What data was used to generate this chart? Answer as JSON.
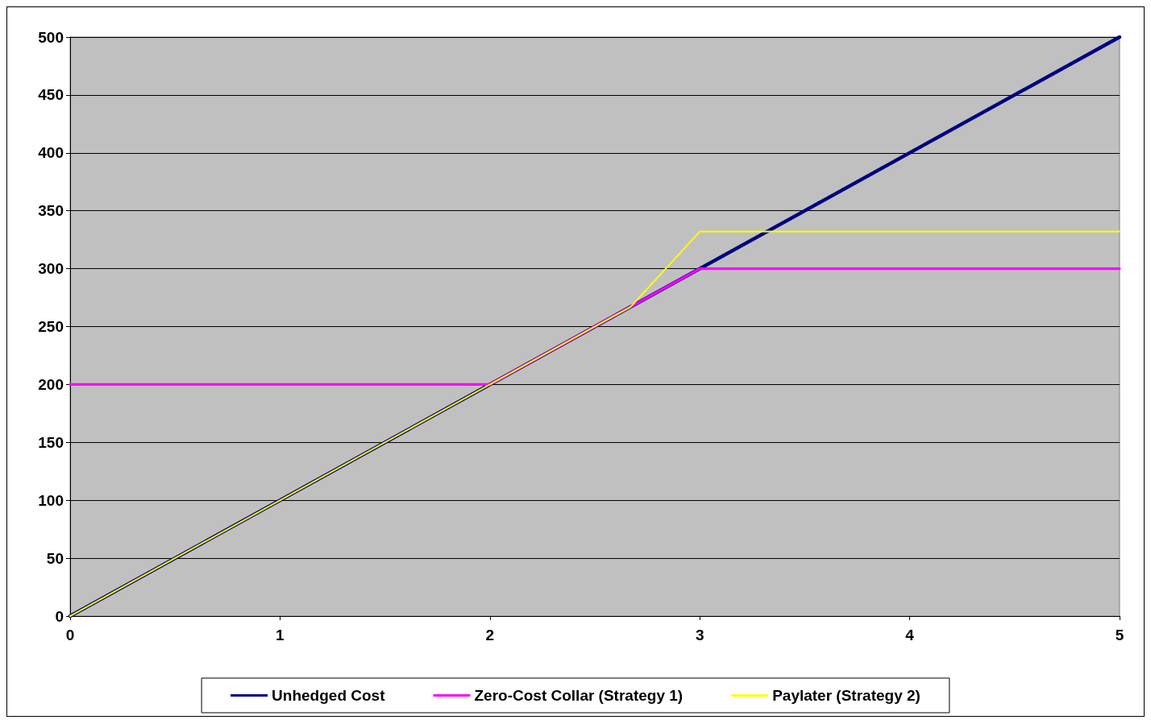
{
  "chart_data": {
    "type": "line",
    "series": [
      {
        "name": "Unhedged Cost",
        "color": "#000080",
        "x": [
          0,
          5
        ],
        "values": [
          0,
          500
        ]
      },
      {
        "name": "Zero-Cost Collar (Strategy 1)",
        "color": "#ff00ff",
        "x": [
          0,
          2,
          3,
          5
        ],
        "values": [
          200,
          200,
          300,
          300
        ]
      },
      {
        "name": "Paylater (Strategy 2)",
        "color": "#ffff00",
        "x": [
          0,
          2.67,
          3,
          5
        ],
        "values": [
          0,
          267,
          332,
          332
        ]
      }
    ],
    "xlim": [
      0,
      5
    ],
    "xticks": [
      0,
      1,
      2,
      3,
      4,
      5
    ],
    "ylim": [
      0,
      500
    ],
    "yticks": [
      0,
      50,
      100,
      150,
      200,
      250,
      300,
      350,
      400,
      450,
      500
    ],
    "grid": "y",
    "legend": "bottom",
    "marker": "none",
    "line_style": "solid"
  }
}
